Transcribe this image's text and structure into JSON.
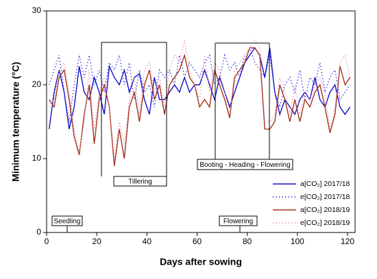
{
  "chart_data": {
    "type": "line",
    "xlabel": "Days after sowing",
    "ylabel": "Minimum temperature (°C)",
    "xlim": [
      0,
      123
    ],
    "ylim": [
      0,
      30
    ],
    "xticks": [
      0,
      20,
      40,
      60,
      80,
      100,
      120
    ],
    "yticks": [
      0,
      10,
      20,
      30
    ],
    "legend": "lower right",
    "annotations": [
      "Seedling",
      "Tillering",
      "Booting - Heading - Flowering",
      "Flowering"
    ],
    "x": [
      1,
      3,
      5,
      7,
      9,
      11,
      13,
      15,
      17,
      19,
      21,
      23,
      25,
      27,
      29,
      31,
      33,
      35,
      37,
      39,
      41,
      43,
      45,
      47,
      49,
      51,
      53,
      55,
      57,
      59,
      61,
      63,
      65,
      67,
      69,
      71,
      73,
      75,
      77,
      79,
      81,
      83,
      85,
      87,
      89,
      91,
      93,
      95,
      97,
      99,
      101,
      103,
      105,
      107,
      109,
      111,
      113,
      115,
      117,
      119,
      121
    ],
    "series": [
      {
        "name": "a[CO₂] 2017/18",
        "color": "#1010c8",
        "style": "solid",
        "values": [
          14,
          19,
          22,
          19,
          14,
          17,
          22.5,
          19,
          18,
          21,
          19,
          16,
          22.5,
          21,
          20,
          22,
          19,
          21,
          21.5,
          18,
          16,
          21,
          18,
          18,
          19,
          20,
          19,
          21,
          19,
          20,
          20,
          22,
          20,
          18,
          21,
          19,
          17,
          19,
          21,
          23,
          24,
          25,
          24,
          21,
          25,
          19,
          16,
          18,
          17,
          16,
          18,
          19,
          18,
          21,
          18,
          17,
          19,
          20,
          17,
          16,
          17
        ]
      },
      {
        "name": "e[CO₂] 2017/18",
        "color": "#3030d8",
        "style": "dotted",
        "values": [
          20,
          22,
          24,
          19,
          15,
          20,
          24,
          21,
          24,
          20,
          22,
          19,
          23,
          22,
          24,
          20,
          23,
          18,
          22,
          19,
          20,
          17,
          22,
          21,
          22,
          20,
          24,
          21,
          23,
          22,
          21,
          23,
          24,
          20,
          21,
          24,
          22,
          23,
          21,
          24,
          25,
          23,
          22,
          21,
          24,
          19,
          17,
          20,
          21,
          19,
          22,
          18,
          21,
          20,
          23,
          19,
          21,
          22,
          18,
          19,
          20
        ]
      },
      {
        "name": "a[CO₂] 2018/19",
        "color": "#a0341c",
        "style": "solid",
        "values": [
          18,
          17,
          21,
          22,
          18,
          13,
          10.5,
          16,
          20,
          12,
          18,
          20,
          17,
          9,
          14,
          10,
          17,
          19,
          15,
          20,
          22,
          18,
          20,
          16,
          20,
          21,
          22,
          24,
          21,
          20,
          17,
          18,
          17,
          22,
          20,
          18,
          15.5,
          21,
          22,
          23,
          25,
          25,
          24,
          14,
          14,
          15,
          20,
          18,
          15,
          18,
          15,
          18,
          17,
          19,
          20,
          17,
          13.5,
          16,
          22.5,
          20,
          21
        ]
      },
      {
        "name": "e[CO₂] 2018/19",
        "color": "#e890b8",
        "style": "dotted",
        "values": [
          17,
          18,
          22,
          23,
          19,
          14,
          11,
          15,
          22,
          14,
          19,
          21,
          17,
          10,
          15,
          12,
          18,
          21,
          16,
          22,
          23,
          19,
          21,
          17,
          22,
          24,
          23,
          26,
          22,
          20,
          18,
          24,
          19,
          23,
          22,
          19,
          16,
          22,
          23,
          24,
          25,
          26,
          25,
          15,
          15,
          16,
          21,
          19,
          16,
          20,
          16,
          19,
          18,
          20,
          21,
          19,
          14,
          17,
          23,
          24,
          21
        ]
      }
    ]
  }
}
